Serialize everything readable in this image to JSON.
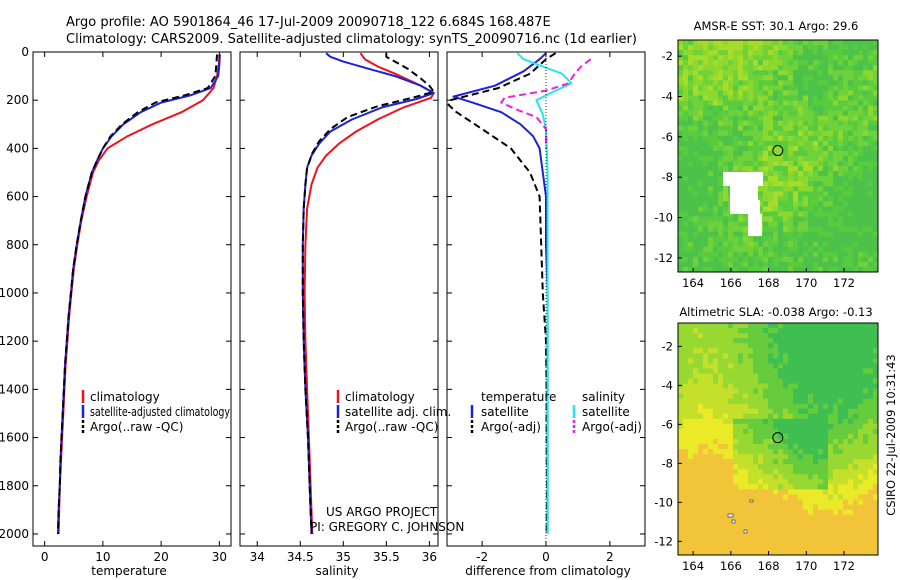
{
  "figure": {
    "title_line1": "Argo profile: AO 5901864_46 17-Jul-2009 20090718_122 6.684S 168.487E",
    "title_line2": "Climatology: CARS2009. Satellite-adjusted climatology: synTS_20090716.nc (1d earlier)",
    "credit1": "US ARGO PROJECT",
    "credit2": "PI: GREGORY C. JOHNSON",
    "stamp": "CSIRO 22-Jul-2009 10:31:43"
  },
  "colors": {
    "climatology": "#e8141e",
    "satellite": "#1c22d6",
    "argo": "#000000",
    "sal_satellite": "#22e6ee",
    "sal_argo": "#e623e6"
  },
  "chart_data": [
    {
      "type": "line",
      "name": "temperature",
      "xlabel": "temperature",
      "ylabel": "",
      "xlim": [
        -2,
        32
      ],
      "ylim": [
        2050,
        0
      ],
      "xticks": [
        0,
        10,
        20,
        30
      ],
      "yticks": [
        0,
        200,
        400,
        600,
        800,
        1000,
        1200,
        1400,
        1600,
        1800,
        2000
      ],
      "legend": [
        "climatology",
        "satellite-adjusted climatology",
        "Argo(..raw -QC)"
      ],
      "series": [
        {
          "name": "climatology",
          "color": "#e8141e",
          "dash": "solid",
          "points": [
            [
              30.0,
              10
            ],
            [
              29.9,
              50
            ],
            [
              29.6,
              100
            ],
            [
              29.0,
              150
            ],
            [
              27.2,
              200
            ],
            [
              23.5,
              250
            ],
            [
              18.5,
              300
            ],
            [
              14.2,
              350
            ],
            [
              10.8,
              400
            ],
            [
              9.3,
              450
            ],
            [
              8.3,
              500
            ],
            [
              7.2,
              600
            ],
            [
              6.3,
              700
            ],
            [
              5.6,
              800
            ],
            [
              5.0,
              900
            ],
            [
              4.6,
              1000
            ],
            [
              4.2,
              1100
            ],
            [
              3.9,
              1200
            ],
            [
              3.6,
              1300
            ],
            [
              3.4,
              1400
            ],
            [
              3.2,
              1500
            ],
            [
              3.0,
              1600
            ],
            [
              2.8,
              1700
            ],
            [
              2.6,
              1800
            ],
            [
              2.5,
              1900
            ],
            [
              2.4,
              2000
            ]
          ]
        },
        {
          "name": "satellite-adjusted climatology",
          "color": "#1c22d6",
          "dash": "solid",
          "points": [
            [
              30.1,
              10
            ],
            [
              30.0,
              50
            ],
            [
              29.8,
              100
            ],
            [
              28.5,
              150
            ],
            [
              25.0,
              180
            ],
            [
              20.0,
              210
            ],
            [
              16.5,
              250
            ],
            [
              13.5,
              300
            ],
            [
              11.5,
              350
            ],
            [
              10.0,
              400
            ],
            [
              9.0,
              450
            ],
            [
              8.1,
              500
            ],
            [
              7.0,
              600
            ],
            [
              6.2,
              700
            ],
            [
              5.5,
              800
            ],
            [
              4.9,
              900
            ],
            [
              4.5,
              1000
            ],
            [
              4.1,
              1100
            ],
            [
              3.8,
              1200
            ],
            [
              3.5,
              1300
            ],
            [
              3.3,
              1400
            ],
            [
              3.1,
              1500
            ],
            [
              2.9,
              1600
            ],
            [
              2.7,
              1700
            ],
            [
              2.6,
              1800
            ],
            [
              2.4,
              1900
            ],
            [
              2.3,
              2000
            ]
          ]
        },
        {
          "name": "Argo(..raw -QC)",
          "color": "#000000",
          "dash": "dash",
          "points": [
            [
              29.6,
              10
            ],
            [
              29.5,
              50
            ],
            [
              29.3,
              100
            ],
            [
              28.0,
              150
            ],
            [
              24.0,
              180
            ],
            [
              19.0,
              210
            ],
            [
              16.0,
              250
            ],
            [
              13.3,
              300
            ],
            [
              11.3,
              350
            ],
            [
              10.0,
              400
            ],
            [
              9.0,
              450
            ],
            [
              8.1,
              500
            ],
            [
              7.0,
              600
            ],
            [
              6.2,
              700
            ],
            [
              5.5,
              800
            ],
            [
              4.9,
              900
            ],
            [
              4.5,
              1000
            ],
            [
              4.1,
              1100
            ],
            [
              3.8,
              1200
            ],
            [
              3.5,
              1300
            ],
            [
              3.3,
              1400
            ],
            [
              3.1,
              1500
            ],
            [
              2.9,
              1600
            ],
            [
              2.7,
              1700
            ],
            [
              2.6,
              1800
            ],
            [
              2.4,
              1900
            ],
            [
              2.3,
              2000
            ]
          ]
        }
      ]
    },
    {
      "type": "line",
      "name": "salinity",
      "xlabel": "salinity",
      "xlim": [
        33.8,
        36.1
      ],
      "ylim": [
        2050,
        0
      ],
      "xticks": [
        34,
        34.5,
        35,
        35.5,
        36
      ],
      "legend": [
        "climatology",
        "satellite adj. clim.",
        "Argo(..raw -QC)"
      ],
      "series": [
        {
          "name": "climatology",
          "color": "#e8141e",
          "dash": "solid",
          "points": [
            [
              35.2,
              5
            ],
            [
              35.25,
              30
            ],
            [
              35.4,
              60
            ],
            [
              35.6,
              90
            ],
            [
              35.9,
              140
            ],
            [
              36.05,
              170
            ],
            [
              36.02,
              190
            ],
            [
              35.7,
              230
            ],
            [
              35.4,
              280
            ],
            [
              35.15,
              330
            ],
            [
              34.95,
              380
            ],
            [
              34.8,
              430
            ],
            [
              34.7,
              480
            ],
            [
              34.63,
              550
            ],
            [
              34.58,
              650
            ],
            [
              34.56,
              800
            ],
            [
              34.55,
              1000
            ],
            [
              34.56,
              1200
            ],
            [
              34.58,
              1400
            ],
            [
              34.6,
              1600
            ],
            [
              34.62,
              1800
            ],
            [
              34.64,
              2000
            ]
          ]
        },
        {
          "name": "satellite adj. clim.",
          "color": "#1c22d6",
          "dash": "solid",
          "points": [
            [
              34.8,
              5
            ],
            [
              34.85,
              20
            ],
            [
              35.0,
              40
            ],
            [
              35.3,
              70
            ],
            [
              35.6,
              100
            ],
            [
              35.9,
              140
            ],
            [
              36.05,
              170
            ],
            [
              35.85,
              195
            ],
            [
              35.45,
              230
            ],
            [
              35.1,
              280
            ],
            [
              34.85,
              330
            ],
            [
              34.72,
              380
            ],
            [
              34.63,
              430
            ],
            [
              34.58,
              480
            ],
            [
              34.56,
              550
            ],
            [
              34.54,
              650
            ],
            [
              34.53,
              800
            ],
            [
              34.53,
              1000
            ],
            [
              34.54,
              1200
            ],
            [
              34.56,
              1400
            ],
            [
              34.59,
              1600
            ],
            [
              34.61,
              1800
            ],
            [
              34.63,
              2000
            ]
          ]
        },
        {
          "name": "Argo(..raw -QC)",
          "color": "#000000",
          "dash": "dash",
          "points": [
            [
              35.5,
              5
            ],
            [
              35.5,
              20
            ],
            [
              35.6,
              40
            ],
            [
              35.75,
              70
            ],
            [
              35.9,
              110
            ],
            [
              36.0,
              140
            ],
            [
              36.05,
              165
            ],
            [
              35.8,
              190
            ],
            [
              35.4,
              225
            ],
            [
              35.05,
              270
            ],
            [
              34.85,
              320
            ],
            [
              34.72,
              370
            ],
            [
              34.64,
              420
            ],
            [
              34.58,
              480
            ],
            [
              34.56,
              550
            ],
            [
              34.54,
              650
            ],
            [
              34.53,
              800
            ],
            [
              34.53,
              1000
            ],
            [
              34.54,
              1200
            ],
            [
              34.56,
              1400
            ],
            [
              34.59,
              1600
            ],
            [
              34.61,
              1800
            ],
            [
              34.63,
              2000
            ]
          ]
        }
      ]
    },
    {
      "type": "line",
      "name": "difference",
      "xlabel": "difference from climatology",
      "xlim": [
        -3.1,
        3.1
      ],
      "ylim": [
        2050,
        0
      ],
      "xticks": [
        -2,
        0,
        2
      ],
      "legend_headers": [
        "temperature",
        "salinity"
      ],
      "legend": [
        "satellite",
        "Argo(-adj)",
        "satellite",
        "Argo(-adj)"
      ],
      "series": [
        {
          "name": "temperature satellite",
          "color": "#1c22d6",
          "dash": "solid",
          "points": [
            [
              0.0,
              5
            ],
            [
              -0.2,
              30
            ],
            [
              -0.7,
              80
            ],
            [
              -1.6,
              140
            ],
            [
              -2.9,
              185
            ],
            [
              -2.3,
              210
            ],
            [
              -1.4,
              250
            ],
            [
              -0.8,
              300
            ],
            [
              -0.4,
              350
            ],
            [
              -0.2,
              400
            ],
            [
              -0.1,
              500
            ],
            [
              0.0,
              600
            ],
            [
              0.0,
              800
            ],
            [
              0.05,
              1000
            ],
            [
              0.05,
              1200
            ],
            [
              0.05,
              1400
            ],
            [
              0.05,
              1600
            ],
            [
              0.05,
              1800
            ],
            [
              0.05,
              2000
            ]
          ]
        },
        {
          "name": "temperature Argo(-adj)",
          "color": "#000000",
          "dash": "dash",
          "points": [
            [
              0.3,
              5
            ],
            [
              0.0,
              30
            ],
            [
              -0.5,
              90
            ],
            [
              -1.5,
              150
            ],
            [
              -3.0,
              200
            ],
            [
              -3.05,
              220
            ],
            [
              -2.8,
              250
            ],
            [
              -2.0,
              320
            ],
            [
              -1.1,
              400
            ],
            [
              -0.5,
              500
            ],
            [
              -0.2,
              600
            ],
            [
              -0.15,
              800
            ],
            [
              -0.1,
              1000
            ],
            [
              0.0,
              1200
            ],
            [
              0.02,
              1400
            ],
            [
              0.02,
              1600
            ],
            [
              0.03,
              1800
            ],
            [
              0.02,
              2000
            ]
          ]
        },
        {
          "name": "salinity satellite",
          "color": "#22e6ee",
          "dash": "solid",
          "points": [
            [
              -0.9,
              5
            ],
            [
              -0.7,
              30
            ],
            [
              -0.1,
              60
            ],
            [
              0.5,
              90
            ],
            [
              0.8,
              130
            ],
            [
              0.3,
              160
            ],
            [
              -0.3,
              200
            ],
            [
              -0.1,
              260
            ],
            [
              0.0,
              320
            ],
            [
              0.05,
              500
            ],
            [
              0.05,
              800
            ],
            [
              0.05,
              1200
            ],
            [
              0.05,
              1600
            ],
            [
              0.05,
              2000
            ]
          ]
        },
        {
          "name": "salinity Argo(-adj)",
          "color": "#e623e6",
          "dash": "dash",
          "points": [
            [
              1.4,
              30
            ],
            [
              1.1,
              60
            ],
            [
              0.9,
              90
            ],
            [
              0.7,
              130
            ],
            [
              0.0,
              160
            ],
            [
              -1.3,
              190
            ],
            [
              -1.4,
              210
            ],
            [
              -0.9,
              240
            ],
            [
              -0.3,
              270
            ],
            [
              0.0,
              320
            ],
            [
              0.0,
              400
            ]
          ]
        }
      ]
    }
  ],
  "maps": [
    {
      "title": "AMSR-E SST: 30.1 Argo: 29.6",
      "xticks": [
        "164",
        "166",
        "168",
        "170",
        "172"
      ],
      "yticks": [
        "-2",
        "-4",
        "-6",
        "-8",
        "-10",
        "-12"
      ],
      "xlim": [
        163.2,
        173.8
      ],
      "ylim": [
        -12.7,
        -1.2
      ],
      "float_lon": 168.49,
      "float_lat": -6.68,
      "palette": [
        "#4cc24a",
        "#58cc3e",
        "#6fd23b",
        "#8cd82f",
        "#a6dc2a"
      ]
    },
    {
      "title": "Altimetric SLA: -0.038 Argo: -0.13",
      "xticks": [
        "164",
        "166",
        "168",
        "170",
        "172"
      ],
      "yticks": [
        "-2",
        "-4",
        "-6",
        "-8",
        "-10",
        "-12"
      ],
      "xlim": [
        163.2,
        173.8
      ],
      "ylim": [
        -12.7,
        -0.8
      ],
      "float_lon": 168.49,
      "float_lat": -6.68,
      "palette": [
        "#3fbf52",
        "#66cc3d",
        "#98d832",
        "#c4e02a",
        "#eaea28",
        "#f2c43a"
      ]
    }
  ]
}
